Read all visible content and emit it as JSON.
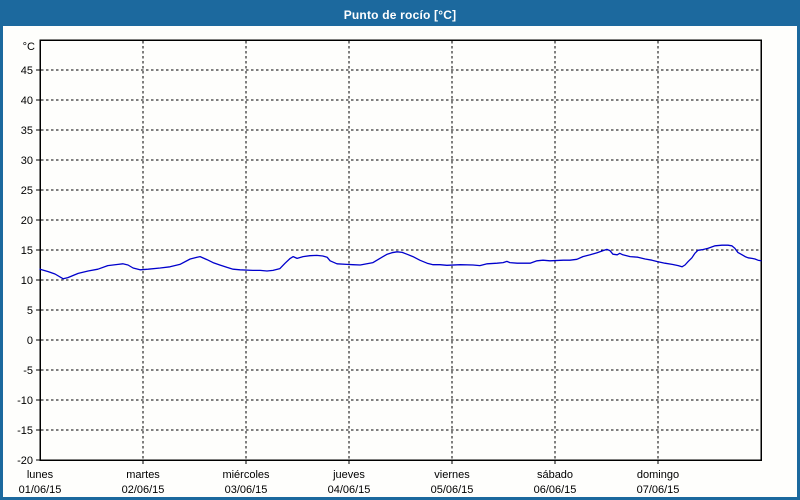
{
  "header": {
    "title": "Punto de rocío [°C]"
  },
  "colors": {
    "accent": "#1c699e",
    "line_color": "#0000cc",
    "background": "#fefefc",
    "grid_color": "#000000",
    "title_text": "#ffffff"
  },
  "chart_data": {
    "type": "line",
    "title": "Punto de rocío [°C]",
    "y_unit_label": "°C",
    "ylim": [
      -20,
      50
    ],
    "y_ticks": [
      45,
      40,
      35,
      30,
      25,
      20,
      15,
      10,
      5,
      0,
      -5,
      -10,
      -15,
      -20
    ],
    "x_hours_total": 168,
    "grid": "dashed",
    "legend": "none",
    "x_days": [
      {
        "name": "lunes",
        "date": "01/06/15"
      },
      {
        "name": "martes",
        "date": "02/06/15"
      },
      {
        "name": "miércoles",
        "date": "03/06/15"
      },
      {
        "name": "jueves",
        "date": "04/06/15"
      },
      {
        "name": "viernes",
        "date": "05/06/15"
      },
      {
        "name": "sábado",
        "date": "06/06/15"
      },
      {
        "name": "domingo",
        "date": "07/06/15"
      }
    ],
    "series": [
      {
        "name": "Punto de rocío",
        "points": [
          [
            0,
            11.8
          ],
          [
            1.9,
            11.4
          ],
          [
            3.5,
            11.0
          ],
          [
            5.4,
            10.2
          ],
          [
            6.5,
            10.4
          ],
          [
            8.9,
            11.1
          ],
          [
            11.2,
            11.5
          ],
          [
            13.5,
            11.8
          ],
          [
            15.8,
            12.4
          ],
          [
            18.2,
            12.6
          ],
          [
            19.3,
            12.7
          ],
          [
            20.5,
            12.5
          ],
          [
            21.7,
            12.0
          ],
          [
            23.3,
            11.7
          ],
          [
            25.2,
            11.8
          ],
          [
            28,
            12.0
          ],
          [
            30.3,
            12.2
          ],
          [
            32.6,
            12.6
          ],
          [
            35,
            13.5
          ],
          [
            36.6,
            13.8
          ],
          [
            37.3,
            13.9
          ],
          [
            38.9,
            13.4
          ],
          [
            40.3,
            12.9
          ],
          [
            41.9,
            12.5
          ],
          [
            43.6,
            12.1
          ],
          [
            45,
            11.8
          ],
          [
            46.6,
            11.7
          ],
          [
            49.6,
            11.6
          ],
          [
            51.3,
            11.6
          ],
          [
            52.9,
            11.5
          ],
          [
            54.3,
            11.6
          ],
          [
            55.9,
            11.9
          ],
          [
            57.1,
            12.8
          ],
          [
            58.3,
            13.6
          ],
          [
            59,
            13.9
          ],
          [
            59.9,
            13.6
          ],
          [
            61.3,
            13.9
          ],
          [
            62.9,
            14.05
          ],
          [
            64.5,
            14.1
          ],
          [
            65.9,
            14.0
          ],
          [
            66.9,
            13.8
          ],
          [
            67.6,
            13.2
          ],
          [
            69.2,
            12.7
          ],
          [
            71.5,
            12.6
          ],
          [
            72.9,
            12.55
          ],
          [
            74.6,
            12.5
          ],
          [
            77.6,
            12.9
          ],
          [
            79.2,
            13.6
          ],
          [
            80.9,
            14.3
          ],
          [
            82,
            14.55
          ],
          [
            83.2,
            14.7
          ],
          [
            84.4,
            14.6
          ],
          [
            85.5,
            14.3
          ],
          [
            86.9,
            13.9
          ],
          [
            88.5,
            13.3
          ],
          [
            90.2,
            12.8
          ],
          [
            91.6,
            12.55
          ],
          [
            93.2,
            12.55
          ],
          [
            94.8,
            12.45
          ],
          [
            97.9,
            12.55
          ],
          [
            100.9,
            12.5
          ],
          [
            102.5,
            12.4
          ],
          [
            104.2,
            12.7
          ],
          [
            106.5,
            12.8
          ],
          [
            107.9,
            12.9
          ],
          [
            108.8,
            13.1
          ],
          [
            109.5,
            12.9
          ],
          [
            111.2,
            12.8
          ],
          [
            114.2,
            12.8
          ],
          [
            115.8,
            13.2
          ],
          [
            117.2,
            13.3
          ],
          [
            118.8,
            13.2
          ],
          [
            121.9,
            13.3
          ],
          [
            123.5,
            13.3
          ],
          [
            125.1,
            13.45
          ],
          [
            126.5,
            13.9
          ],
          [
            128.2,
            14.2
          ],
          [
            129.8,
            14.55
          ],
          [
            131.2,
            14.9
          ],
          [
            132.1,
            15.1
          ],
          [
            132.8,
            14.9
          ],
          [
            133.5,
            14.3
          ],
          [
            134.5,
            14.2
          ],
          [
            135.1,
            14.45
          ],
          [
            135.8,
            14.2
          ],
          [
            137.5,
            13.9
          ],
          [
            139.3,
            13.8
          ],
          [
            141,
            13.5
          ],
          [
            142.6,
            13.3
          ],
          [
            144,
            13.05
          ],
          [
            145.6,
            12.8
          ],
          [
            147.3,
            12.6
          ],
          [
            148.7,
            12.4
          ],
          [
            149.6,
            12.2
          ],
          [
            150.3,
            12.5
          ],
          [
            151,
            13.05
          ],
          [
            151.9,
            13.7
          ],
          [
            152.6,
            14.45
          ],
          [
            153.3,
            14.95
          ],
          [
            154.3,
            15.05
          ],
          [
            155.7,
            15.3
          ],
          [
            157.3,
            15.7
          ],
          [
            158.9,
            15.8
          ],
          [
            160.3,
            15.8
          ],
          [
            161.2,
            15.7
          ],
          [
            161.9,
            15.3
          ],
          [
            162.6,
            14.6
          ],
          [
            163.6,
            14.2
          ],
          [
            164.3,
            13.9
          ],
          [
            165,
            13.7
          ],
          [
            165.9,
            13.6
          ],
          [
            166.6,
            13.5
          ],
          [
            167.3,
            13.3
          ],
          [
            168,
            13.2
          ]
        ]
      }
    ]
  }
}
